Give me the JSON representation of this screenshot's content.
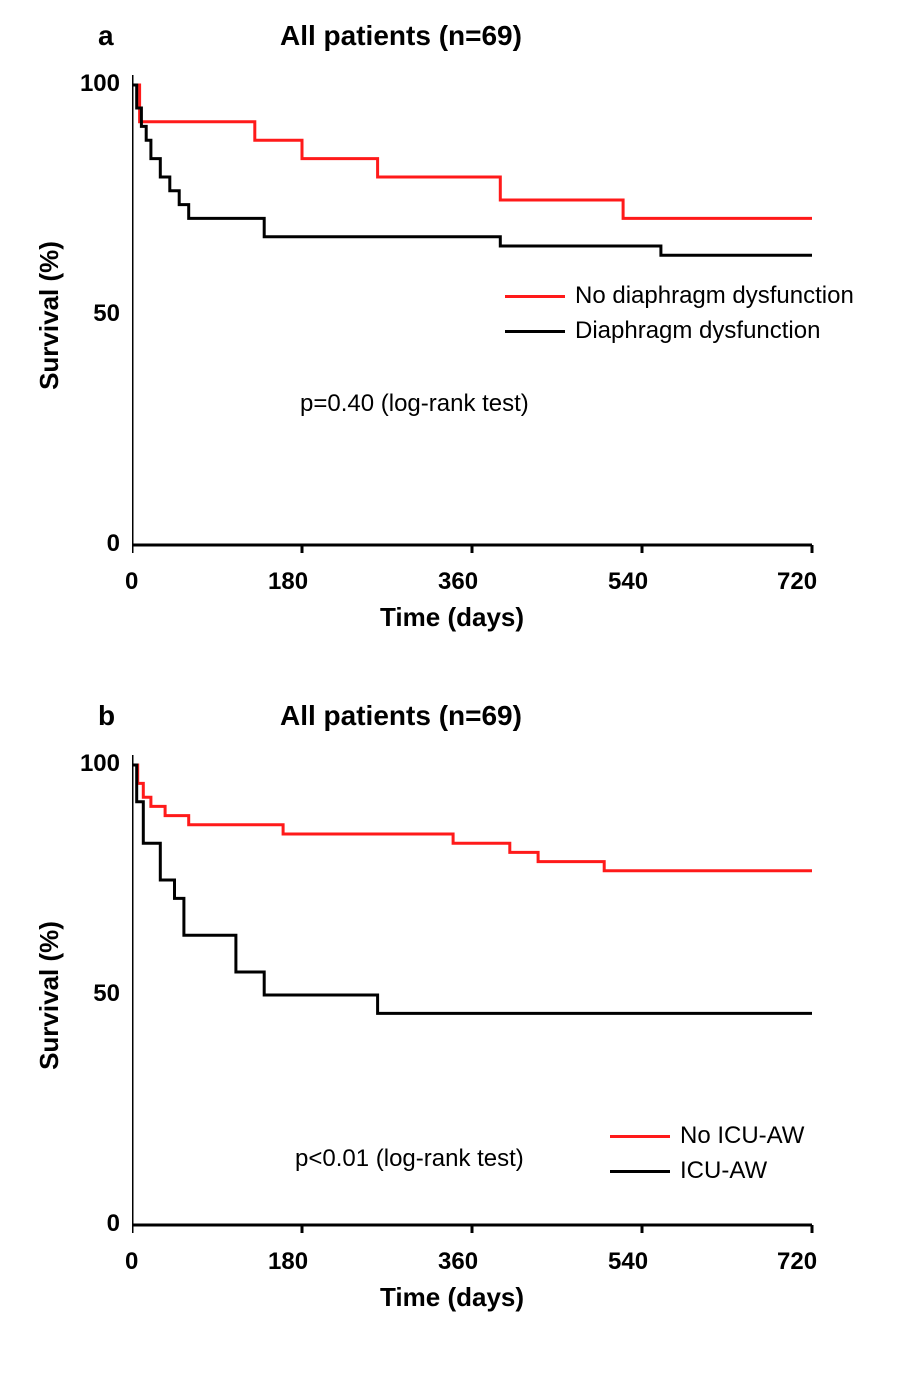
{
  "figure_width": 898,
  "figure_height": 1349,
  "panels": [
    {
      "id": "a",
      "panel_label": "a",
      "title": "All patients (n=69)",
      "type": "kaplan-meier",
      "ylabel": "Survival (%)",
      "xlabel": "Time (days)",
      "xlim": [
        0,
        720
      ],
      "ylim": [
        0,
        100
      ],
      "xticks": [
        0,
        180,
        360,
        540,
        720
      ],
      "yticks": [
        0,
        50,
        100
      ],
      "axis_color": "#000000",
      "axis_width": 3,
      "line_width": 3,
      "background_color": "#ffffff",
      "title_fontsize": 28,
      "label_fontsize": 26,
      "tick_fontsize": 24,
      "p_text": "p=0.40 (log-rank test)",
      "series": [
        {
          "name": "No diaphragm dysfunction",
          "color": "#ff1a1a",
          "points": [
            [
              0,
              100
            ],
            [
              8,
              100
            ],
            [
              8,
              92
            ],
            [
              130,
              92
            ],
            [
              130,
              88
            ],
            [
              180,
              88
            ],
            [
              180,
              84
            ],
            [
              260,
              84
            ],
            [
              260,
              80
            ],
            [
              390,
              80
            ],
            [
              390,
              75
            ],
            [
              520,
              75
            ],
            [
              520,
              71
            ],
            [
              720,
              71
            ]
          ]
        },
        {
          "name": "Diaphragm dysfunction",
          "color": "#000000",
          "points": [
            [
              0,
              100
            ],
            [
              5,
              100
            ],
            [
              5,
              95
            ],
            [
              10,
              95
            ],
            [
              10,
              91
            ],
            [
              15,
              91
            ],
            [
              15,
              88
            ],
            [
              20,
              88
            ],
            [
              20,
              84
            ],
            [
              30,
              84
            ],
            [
              30,
              80
            ],
            [
              40,
              80
            ],
            [
              40,
              77
            ],
            [
              50,
              77
            ],
            [
              50,
              74
            ],
            [
              60,
              74
            ],
            [
              60,
              71
            ],
            [
              140,
              71
            ],
            [
              140,
              67
            ],
            [
              390,
              67
            ],
            [
              390,
              65
            ],
            [
              560,
              65
            ],
            [
              560,
              63
            ],
            [
              720,
              63
            ]
          ]
        }
      ],
      "legend": {
        "items": [
          {
            "label": "No diaphragm dysfunction",
            "color": "#ff1a1a"
          },
          {
            "label": "Diaphragm dysfunction",
            "color": "#000000"
          }
        ]
      }
    },
    {
      "id": "b",
      "panel_label": "b",
      "title": "All patients (n=69)",
      "type": "kaplan-meier",
      "ylabel": "Survival (%)",
      "xlabel": "Time (days)",
      "xlim": [
        0,
        720
      ],
      "ylim": [
        0,
        100
      ],
      "xticks": [
        0,
        180,
        360,
        540,
        720
      ],
      "yticks": [
        0,
        50,
        100
      ],
      "axis_color": "#000000",
      "axis_width": 3,
      "line_width": 3,
      "background_color": "#ffffff",
      "title_fontsize": 28,
      "label_fontsize": 26,
      "tick_fontsize": 24,
      "p_text": "p<0.01 (log-rank test)",
      "series": [
        {
          "name": "No ICU-AW",
          "color": "#ff1a1a",
          "points": [
            [
              0,
              100
            ],
            [
              6,
              100
            ],
            [
              6,
              96
            ],
            [
              12,
              96
            ],
            [
              12,
              93
            ],
            [
              20,
              93
            ],
            [
              20,
              91
            ],
            [
              35,
              91
            ],
            [
              35,
              89
            ],
            [
              60,
              89
            ],
            [
              60,
              87
            ],
            [
              160,
              87
            ],
            [
              160,
              85
            ],
            [
              340,
              85
            ],
            [
              340,
              83
            ],
            [
              400,
              83
            ],
            [
              400,
              81
            ],
            [
              430,
              81
            ],
            [
              430,
              79
            ],
            [
              500,
              79
            ],
            [
              500,
              77
            ],
            [
              720,
              77
            ]
          ]
        },
        {
          "name": "ICU-AW",
          "color": "#000000",
          "points": [
            [
              0,
              100
            ],
            [
              5,
              100
            ],
            [
              5,
              92
            ],
            [
              12,
              92
            ],
            [
              12,
              83
            ],
            [
              30,
              83
            ],
            [
              30,
              75
            ],
            [
              45,
              75
            ],
            [
              45,
              71
            ],
            [
              55,
              71
            ],
            [
              55,
              63
            ],
            [
              110,
              63
            ],
            [
              110,
              55
            ],
            [
              140,
              55
            ],
            [
              140,
              50
            ],
            [
              260,
              50
            ],
            [
              260,
              46
            ],
            [
              720,
              46
            ]
          ]
        }
      ],
      "legend": {
        "items": [
          {
            "label": "No ICU-AW",
            "color": "#ff1a1a"
          },
          {
            "label": "ICU-AW",
            "color": "#000000"
          }
        ]
      }
    }
  ]
}
